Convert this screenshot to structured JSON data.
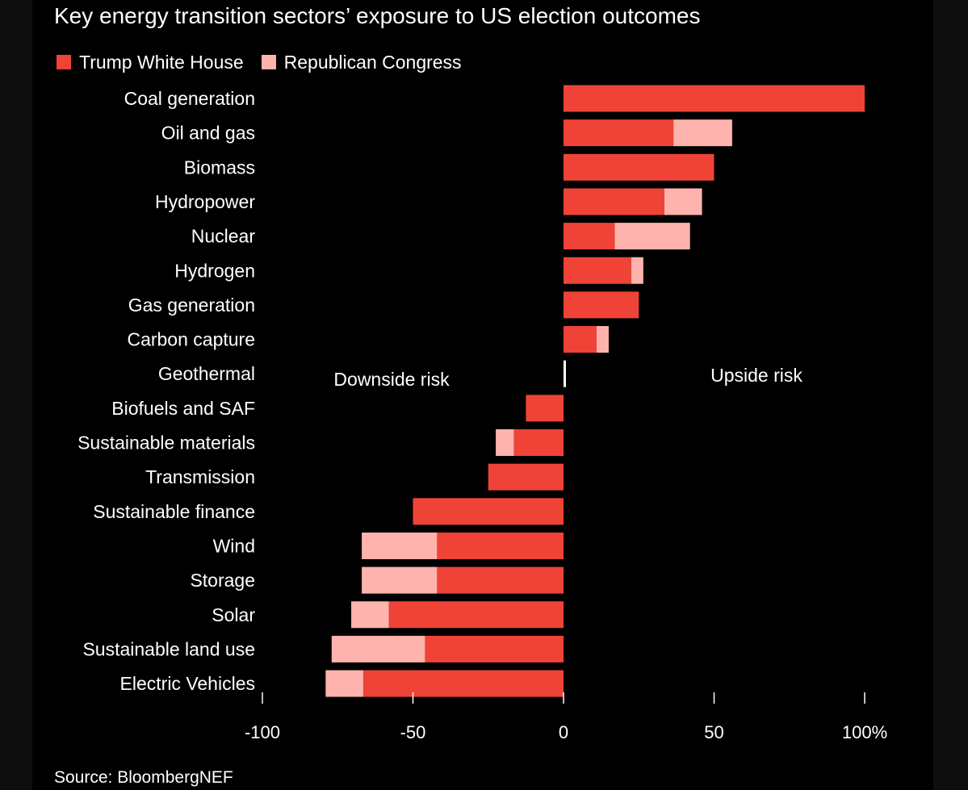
{
  "title": "Key energy transition sectors’ exposure to US election outcomes",
  "source": "Source: BloombergNEF",
  "legend": {
    "series1": "Trump White House",
    "series2": "Republican Congress"
  },
  "colors": {
    "background": "#000000",
    "series1": "#ef4337",
    "series2": "#ffb3ad",
    "text": "#ffffff"
  },
  "chart_data": {
    "type": "bar",
    "orientation": "horizontal",
    "stacked": true,
    "title": "Key energy transition sectors’ exposure to US election outcomes",
    "categories": [
      "Coal generation",
      "Oil and gas",
      "Biomass",
      "Hydropower",
      "Nuclear",
      "Hydrogen",
      "Gas generation",
      "Carbon capture",
      "Geothermal",
      "Biofuels and SAF",
      "Sustainable materials",
      "Transmission",
      "Sustainable finance",
      "Wind",
      "Storage",
      "Solar",
      "Sustainable land use",
      "Electric Vehicles"
    ],
    "series": [
      {
        "name": "Trump White House",
        "color": "#ef4337",
        "values": [
          100,
          36.5,
          50,
          33.5,
          17,
          22.5,
          25,
          11,
          0.8,
          -12.5,
          -16.5,
          -25,
          -50,
          -42,
          -42,
          -58,
          -46,
          -66.5
        ]
      },
      {
        "name": "Republican Congress",
        "color": "#ffb3ad",
        "values": [
          0,
          19.5,
          0,
          12.5,
          25,
          4,
          0,
          4,
          0,
          0,
          -6,
          0,
          0,
          -25,
          -25,
          -12.5,
          -31,
          -12.5
        ]
      }
    ],
    "xlim": [
      -100,
      100
    ],
    "xticks": [
      -100,
      -50,
      0,
      50,
      100
    ],
    "xtick_labels": [
      "-100",
      "-50",
      "0",
      "50",
      "100%"
    ],
    "annotations": {
      "left": "Downside risk",
      "right": "Upside risk"
    },
    "grid": false,
    "legend_position": "top-left"
  }
}
